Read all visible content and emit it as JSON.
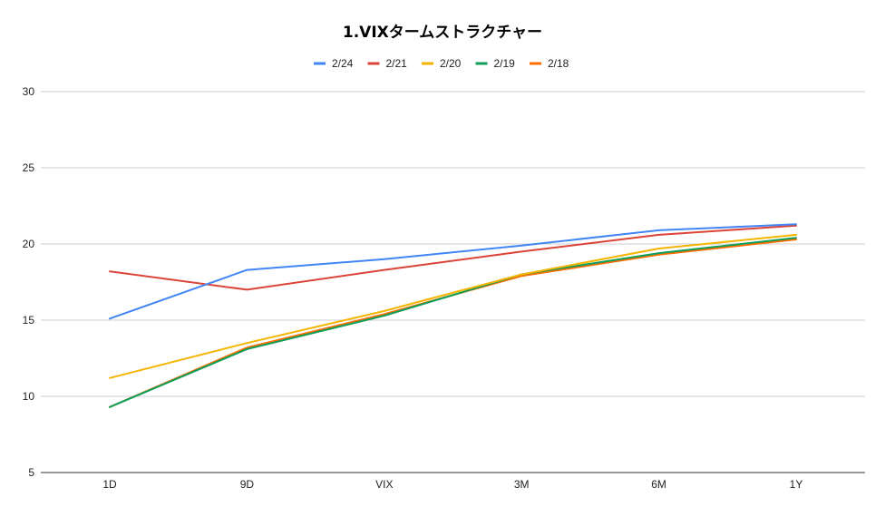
{
  "chart_data": {
    "type": "line",
    "title": "1.VIXタームストラクチャー",
    "xlabel": "",
    "ylabel": "",
    "categories": [
      "1D",
      "9D",
      "VIX",
      "3M",
      "6M",
      "1Y"
    ],
    "ylim": [
      5,
      30
    ],
    "yticks": [
      5,
      10,
      15,
      20,
      25,
      30
    ],
    "grid": true,
    "legend_position": "top",
    "series": [
      {
        "name": "2/24",
        "color": "#4285f4",
        "values": [
          15.1,
          18.3,
          19.0,
          19.9,
          20.9,
          21.3
        ]
      },
      {
        "name": "2/21",
        "color": "#db4437",
        "values": [
          18.2,
          17.0,
          18.3,
          19.5,
          20.6,
          21.2
        ]
      },
      {
        "name": "2/20",
        "color": "#f4b400",
        "values": [
          11.2,
          13.5,
          15.6,
          18.0,
          19.7,
          20.6
        ]
      },
      {
        "name": "2/19",
        "color": "#0f9d58",
        "values": [
          9.3,
          13.1,
          15.3,
          18.0,
          19.4,
          20.4
        ]
      },
      {
        "name": "2/18",
        "color": "#ff6d01",
        "values": [
          9.3,
          13.2,
          15.4,
          17.9,
          19.3,
          20.3
        ]
      }
    ]
  }
}
